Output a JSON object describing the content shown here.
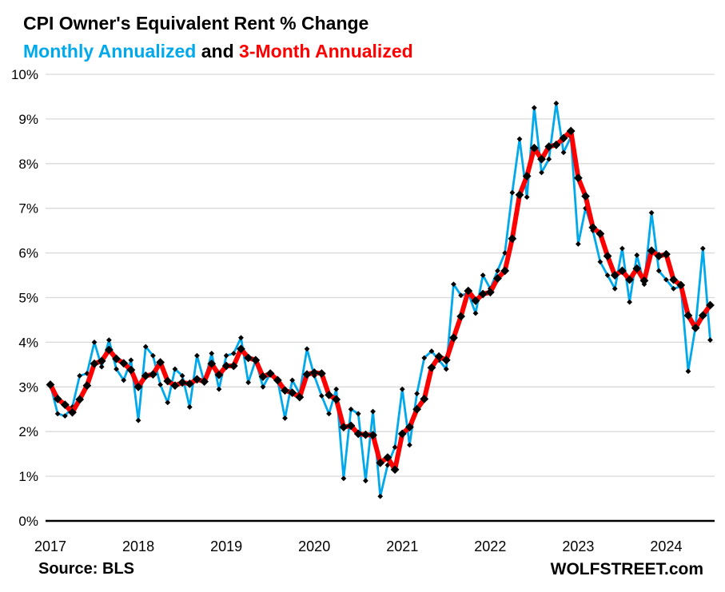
{
  "header": {
    "title": "CPI Owner's Equivalent Rent % Change"
  },
  "subtitle": {
    "connector": " and "
  },
  "footer": {
    "source": "Source: BLS",
    "branding": "WOLFSTREET.com"
  },
  "colors": {
    "monthly_line": "#00a8ec",
    "three_month_line": "#fe0000",
    "marker": "#000000",
    "grid": "#d9d9d9",
    "axis": "#000000",
    "title_text": "#000000"
  },
  "chart_data": {
    "type": "line",
    "title": "CPI Owner's Equivalent Rent % Change",
    "x_unit": "month",
    "x_start": "2017-01",
    "x_end": "2024-07",
    "x_tick_labels": [
      "2017",
      "2018",
      "2019",
      "2020",
      "2021",
      "2022",
      "2023",
      "2024"
    ],
    "y_tick_labels": [
      "0%",
      "1%",
      "2%",
      "3%",
      "4%",
      "5%",
      "6%",
      "7%",
      "8%",
      "9%",
      "10%"
    ],
    "ylim": [
      0,
      10
    ],
    "grid": true,
    "legend_position": "subtitle",
    "series": [
      {
        "name": "Monthly Annualized",
        "color": "#00a8ec",
        "marker": "diamond",
        "values": [
          3.05,
          2.4,
          2.35,
          2.55,
          3.25,
          3.3,
          4.0,
          3.45,
          4.05,
          3.4,
          3.15,
          3.6,
          2.25,
          3.9,
          3.7,
          3.05,
          2.65,
          3.4,
          3.25,
          2.55,
          3.7,
          3.1,
          3.75,
          2.95,
          3.7,
          3.75,
          4.1,
          3.1,
          3.6,
          3.0,
          3.3,
          3.15,
          2.3,
          3.15,
          2.85,
          3.85,
          3.25,
          2.8,
          2.4,
          2.95,
          0.95,
          2.5,
          2.4,
          0.9,
          2.45,
          0.55,
          1.25,
          1.65,
          2.95,
          1.7,
          2.85,
          3.65,
          3.8,
          3.6,
          3.4,
          5.3,
          5.05,
          5.1,
          4.65,
          5.5,
          5.2,
          5.6,
          6.0,
          7.35,
          8.55,
          7.25,
          9.25,
          7.8,
          8.1,
          9.35,
          8.25,
          8.6,
          6.2,
          7.0,
          6.5,
          5.8,
          5.5,
          5.2,
          6.1,
          4.9,
          5.95,
          5.3,
          6.9,
          5.6,
          5.4,
          5.2,
          5.25,
          3.35,
          4.35,
          6.1,
          4.05
        ]
      },
      {
        "name": "3-Month Annualized",
        "color": "#fe0000",
        "marker": "diamond",
        "values": [
          3.05,
          2.73,
          2.6,
          2.43,
          2.72,
          3.03,
          3.52,
          3.58,
          3.83,
          3.63,
          3.53,
          3.38,
          3.0,
          3.25,
          3.28,
          3.55,
          3.13,
          3.03,
          3.1,
          3.07,
          3.17,
          3.12,
          3.52,
          3.27,
          3.47,
          3.47,
          3.85,
          3.65,
          3.6,
          3.23,
          3.3,
          3.15,
          2.92,
          2.87,
          2.77,
          3.28,
          3.32,
          3.3,
          2.82,
          2.72,
          2.1,
          2.13,
          1.95,
          1.93,
          1.92,
          1.3,
          1.42,
          1.15,
          1.95,
          2.1,
          2.5,
          2.73,
          3.43,
          3.68,
          3.6,
          4.1,
          4.58,
          5.15,
          4.93,
          5.08,
          5.12,
          5.43,
          5.6,
          6.32,
          7.3,
          7.72,
          8.35,
          8.1,
          8.38,
          8.42,
          8.57,
          8.73,
          7.68,
          7.27,
          6.57,
          6.43,
          5.93,
          5.5,
          5.6,
          5.4,
          5.65,
          5.38,
          6.05,
          5.93,
          5.97,
          5.4,
          5.28,
          4.6,
          4.32,
          4.6,
          4.83
        ]
      }
    ]
  }
}
